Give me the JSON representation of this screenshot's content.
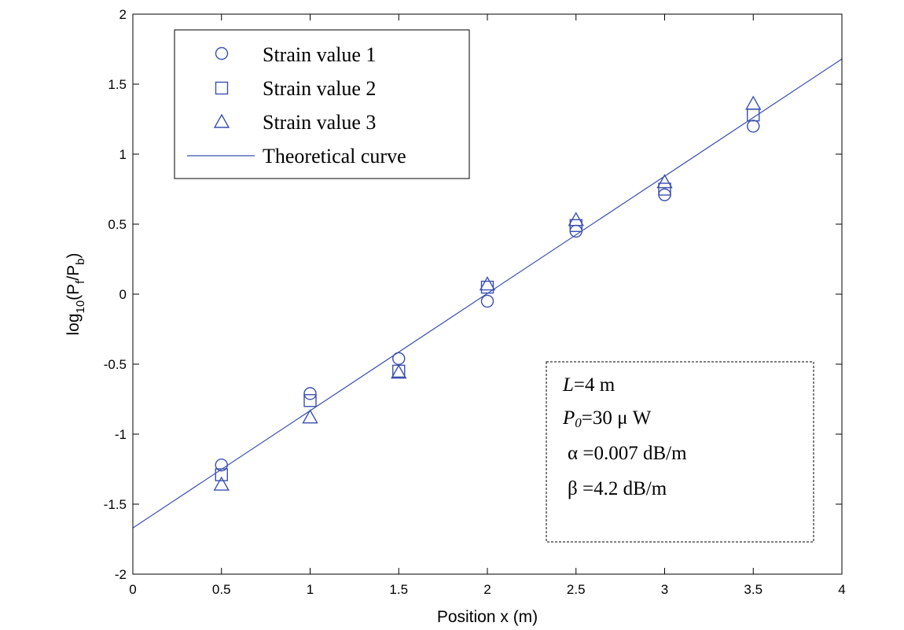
{
  "chart_data": {
    "type": "scatter",
    "xlabel": "Position x (m)",
    "ylabel_parts": {
      "main": "log",
      "sub": "10",
      "open": "(P",
      "f": "f",
      "slash": "/P",
      "b": "b",
      "close": ")"
    },
    "xlim": [
      0,
      4
    ],
    "ylim": [
      -2,
      2
    ],
    "x_ticks": [
      0,
      0.5,
      1,
      1.5,
      2,
      2.5,
      3,
      3.5,
      4
    ],
    "x_tick_labels": [
      "0",
      "0.5",
      "1",
      "1.5",
      "2",
      "2.5",
      "3",
      "3.5",
      "4"
    ],
    "y_ticks": [
      -2,
      -1.5,
      -1,
      -0.5,
      0,
      0.5,
      1,
      1.5,
      2
    ],
    "y_tick_labels": [
      "-2",
      "-1.5",
      "-1",
      "-0.5",
      "0",
      "0.5",
      "1",
      "1.5",
      "2"
    ],
    "grid": false,
    "legend_position": "top-left",
    "color": "#3a4fb0",
    "series": [
      {
        "name": "Strain value 1",
        "marker": "circle",
        "x": [
          0.5,
          1,
          1.5,
          2,
          2.5,
          3,
          3.5
        ],
        "y": [
          -1.22,
          -0.71,
          -0.46,
          -0.05,
          0.45,
          0.71,
          1.2
        ]
      },
      {
        "name": "Strain value 2",
        "marker": "square",
        "x": [
          0.5,
          1,
          1.5,
          2,
          2.5,
          3,
          3.5
        ],
        "y": [
          -1.29,
          -0.76,
          -0.55,
          0.05,
          0.49,
          0.75,
          1.28
        ]
      },
      {
        "name": "Strain value 3",
        "marker": "triangle",
        "x": [
          0.5,
          1,
          1.5,
          2,
          2.5,
          3,
          3.5
        ],
        "y": [
          -1.36,
          -0.88,
          -0.56,
          0.07,
          0.53,
          0.8,
          1.36
        ]
      },
      {
        "name": "Theoretical curve",
        "marker": "line",
        "x": [
          0,
          4
        ],
        "y": [
          -1.67,
          1.68
        ]
      }
    ],
    "annotation": {
      "l_sym": "L",
      "l_val": "=4 m",
      "p_sym": "P",
      "p_sub": "0",
      "p_val": "=30 μ W",
      "alpha": "α =0.007 dB/m",
      "beta": "β =4.2 dB/m"
    }
  }
}
